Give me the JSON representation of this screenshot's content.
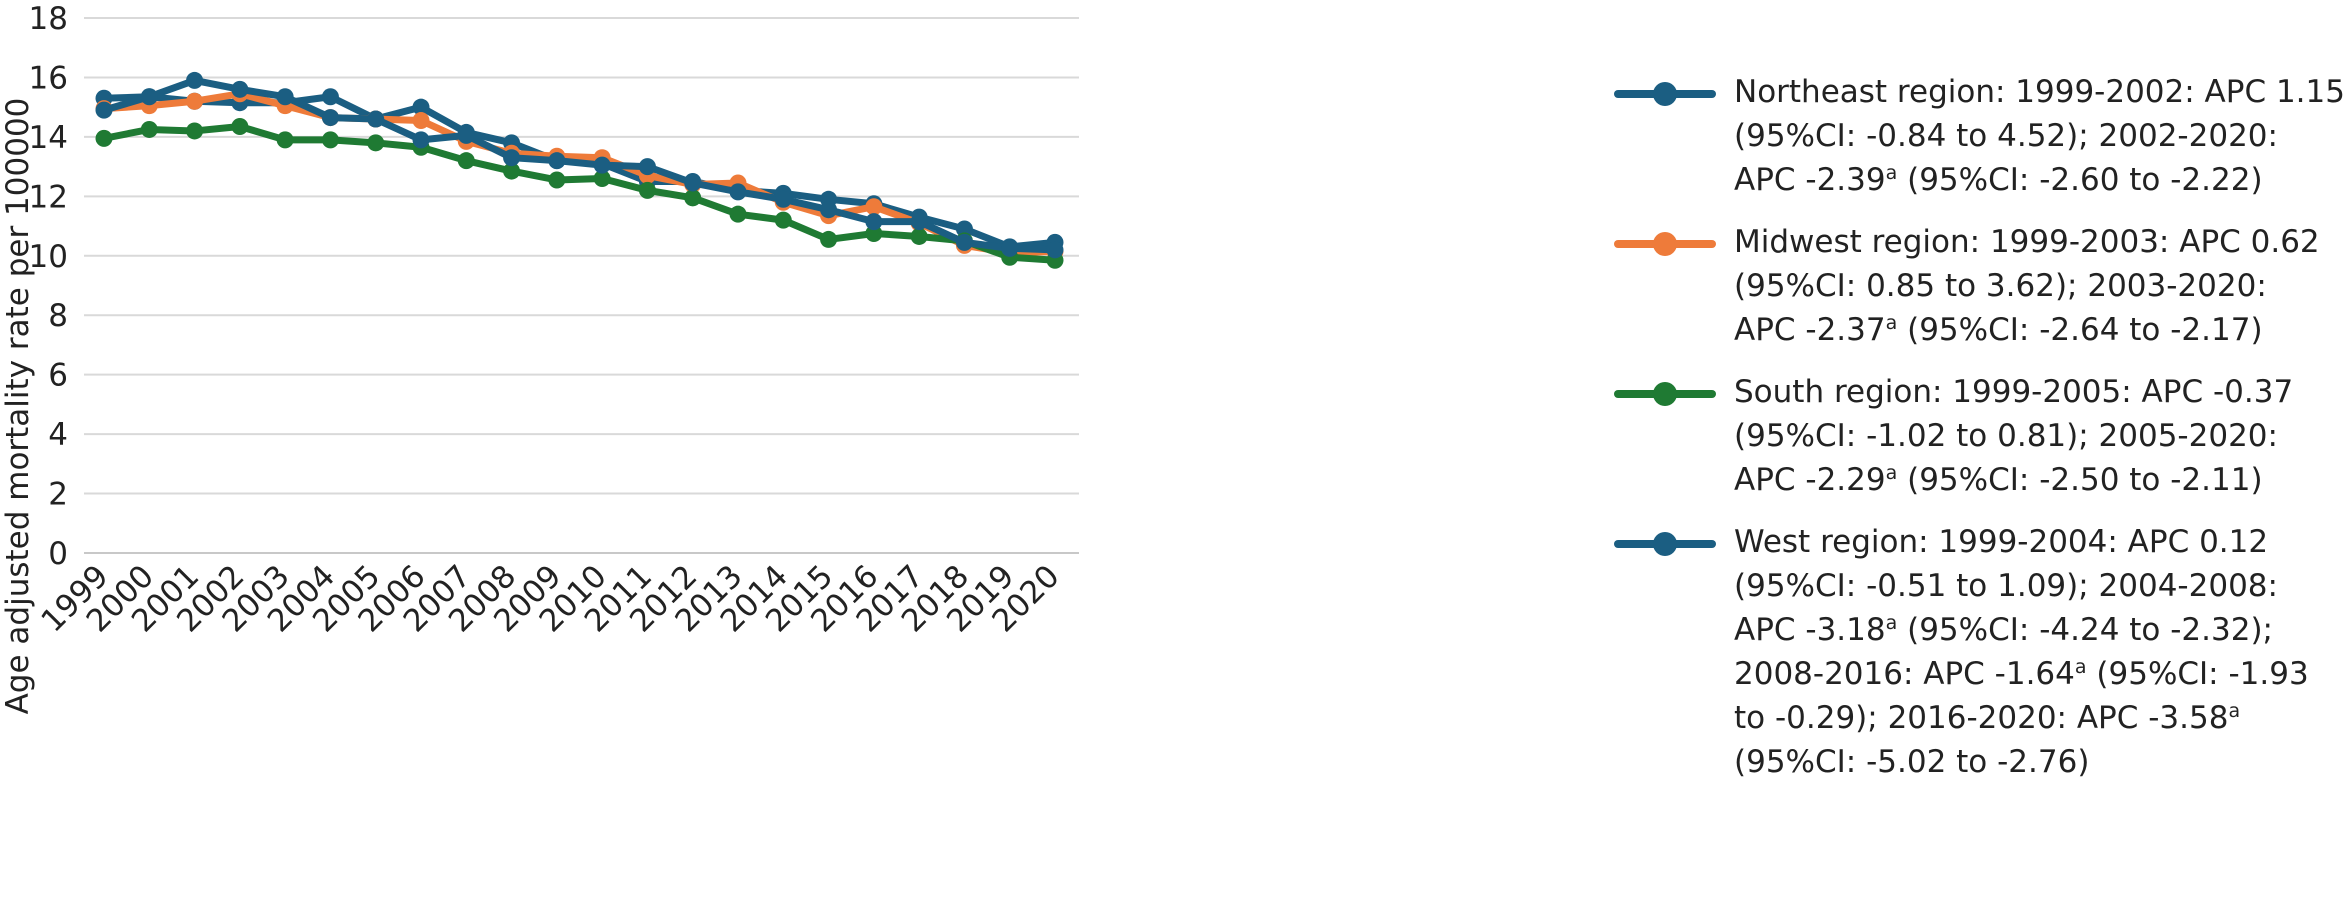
{
  "chart_data": {
    "type": "line",
    "title": "",
    "xlabel": "",
    "ylabel": "Age adjusted mortality rate per 100000",
    "ylim": [
      0,
      18
    ],
    "yticks": [
      "0",
      "2",
      "4",
      "6",
      "8",
      "10",
      "12",
      "14",
      "16",
      "18"
    ],
    "grid": true,
    "legend_position": "right",
    "categories": [
      "1999",
      "2000",
      "2001",
      "2002",
      "2003",
      "2004",
      "2005",
      "2006",
      "2007",
      "2008",
      "2009",
      "2010",
      "2011",
      "2012",
      "2013",
      "2014",
      "2015",
      "2016",
      "2017",
      "2018",
      "2019",
      "2020"
    ],
    "series": [
      {
        "name": "Northeast region: 1999-2002: APC 1.15 (95%CI: -0.84 to 4.52); 2002-2020: APC -2.39a (95%CI: -2.60 to -2.22)",
        "color": "#1b5e82",
        "legend_lines": [
          {
            "pre": "Northeast region: 1999-2002: APC 1.15",
            "sup": "",
            "post": ""
          },
          {
            "pre": "(95%CI: -0.84 to 4.52); 2002-2020:",
            "sup": "",
            "post": ""
          },
          {
            "pre": "APC -2.39",
            "sup": "a",
            "post": " (95%CI: -2.60 to -2.22)"
          }
        ],
        "values": [
          15.3,
          15.35,
          15.2,
          15.15,
          15.15,
          15.35,
          14.6,
          15.0,
          14.15,
          13.8,
          13.2,
          13.1,
          12.5,
          12.5,
          12.2,
          12.1,
          11.9,
          11.75,
          11.3,
          10.9,
          10.3,
          10.45
        ]
      },
      {
        "name": "Midwest region: 1999-2003: APC 0.62 (95%CI: 0.85 to 3.62); 2003-2020: APC -2.37a (95%CI: -2.64 to -2.17)",
        "color": "#ee7b3a",
        "legend_lines": [
          {
            "pre": "Midwest region: 1999-2003: APC 0.62",
            "sup": "",
            "post": ""
          },
          {
            "pre": "(95%CI: 0.85 to 3.62); 2003-2020:",
            "sup": "",
            "post": ""
          },
          {
            "pre": "APC -2.37",
            "sup": "a",
            "post": " (95%CI: -2.64 to -2.17)"
          }
        ],
        "values": [
          14.95,
          15.05,
          15.2,
          15.45,
          15.05,
          14.65,
          14.6,
          14.55,
          13.85,
          13.45,
          13.35,
          13.3,
          12.7,
          12.4,
          12.45,
          11.8,
          11.35,
          11.65,
          11.1,
          10.35,
          10.1,
          10.15
        ]
      },
      {
        "name": "South region: 1999-2005: APC -0.37 (95%CI: -1.02 to 0.81); 2005-2020: APC -2.29a (95%CI: -2.50 to -2.11)",
        "color": "#1f7a33",
        "legend_lines": [
          {
            "pre": "South region: 1999-2005: APC -0.37",
            "sup": "",
            "post": ""
          },
          {
            "pre": "(95%CI: -1.02 to 0.81); 2005-2020:",
            "sup": "",
            "post": ""
          },
          {
            "pre": "APC -2.29",
            "sup": "a",
            "post": " (95%CI: -2.50 to -2.11)"
          }
        ],
        "values": [
          13.95,
          14.25,
          14.2,
          14.35,
          13.9,
          13.9,
          13.8,
          13.65,
          13.2,
          12.85,
          12.55,
          12.6,
          12.2,
          11.95,
          11.4,
          11.2,
          10.55,
          10.75,
          10.65,
          10.5,
          9.95,
          9.85
        ]
      },
      {
        "name": "West region: 1999-2004: APC 0.12 (95%CI: -0.51 to 1.09); 2004-2008: APC -3.18a (95%CI: -4.24 to -2.32); 2008-2016: APC -1.64a (95%CI: -1.93 to -0.29); 2016-2020: APC -3.58a (95%CI: -5.02 to -2.76)",
        "color": "#1b5e82",
        "legend_lines": [
          {
            "pre": "West region: 1999-2004: APC 0.12",
            "sup": "",
            "post": ""
          },
          {
            "pre": "(95%CI: -0.51 to 1.09); 2004-2008:",
            "sup": "",
            "post": ""
          },
          {
            "pre": "APC -3.18",
            "sup": "a",
            "post": " (95%CI: -4.24 to -2.32);"
          },
          {
            "pre": "2008-2016: APC -1.64",
            "sup": "a",
            "post": " (95%CI: -1.93"
          },
          {
            "pre": "to -0.29); 2016-2020: APC -3.58",
            "sup": "a",
            "post": ""
          },
          {
            "pre": "(95%CI: -5.02 to -2.76)",
            "sup": "",
            "post": ""
          }
        ],
        "values": [
          14.9,
          15.35,
          15.9,
          15.6,
          15.35,
          14.65,
          14.6,
          13.9,
          14.05,
          13.3,
          13.2,
          13.05,
          13.0,
          12.45,
          12.15,
          11.9,
          11.55,
          11.15,
          11.15,
          10.45,
          10.25,
          10.2
        ]
      }
    ]
  }
}
